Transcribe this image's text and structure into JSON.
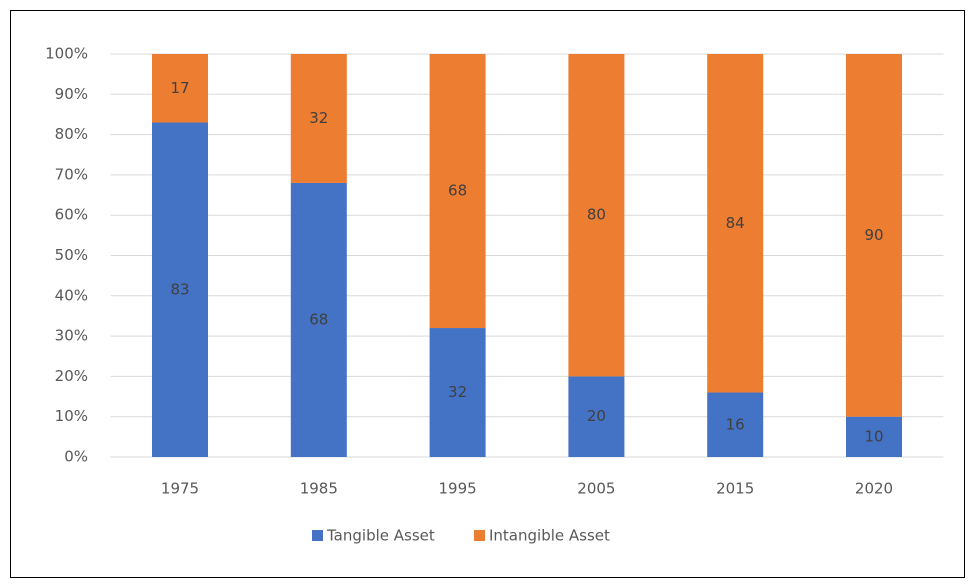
{
  "chart_data": {
    "type": "stacked_bar",
    "categories": [
      "1975",
      "1985",
      "1995",
      "2005",
      "2015",
      "2020"
    ],
    "series": [
      {
        "name": "Tangible Asset",
        "color": "#4472c4",
        "values": [
          83,
          68,
          32,
          20,
          16,
          10
        ]
      },
      {
        "name": "Intangible Asset",
        "color": "#ed7d31",
        "values": [
          17,
          32,
          68,
          80,
          84,
          90
        ]
      }
    ],
    "ylim": [
      0,
      100
    ],
    "yticks": [
      {
        "value": 0,
        "label": "0%"
      },
      {
        "value": 10,
        "label": "10%"
      },
      {
        "value": 20,
        "label": "20%"
      },
      {
        "value": 30,
        "label": "30%"
      },
      {
        "value": 40,
        "label": "40%"
      },
      {
        "value": 50,
        "label": "50%"
      },
      {
        "value": 60,
        "label": "60%"
      },
      {
        "value": 70,
        "label": "70%"
      },
      {
        "value": 80,
        "label": "80%"
      },
      {
        "value": 90,
        "label": "90%"
      },
      {
        "value": 100,
        "label": "100%"
      }
    ],
    "grid": true,
    "legend": "bottom"
  }
}
